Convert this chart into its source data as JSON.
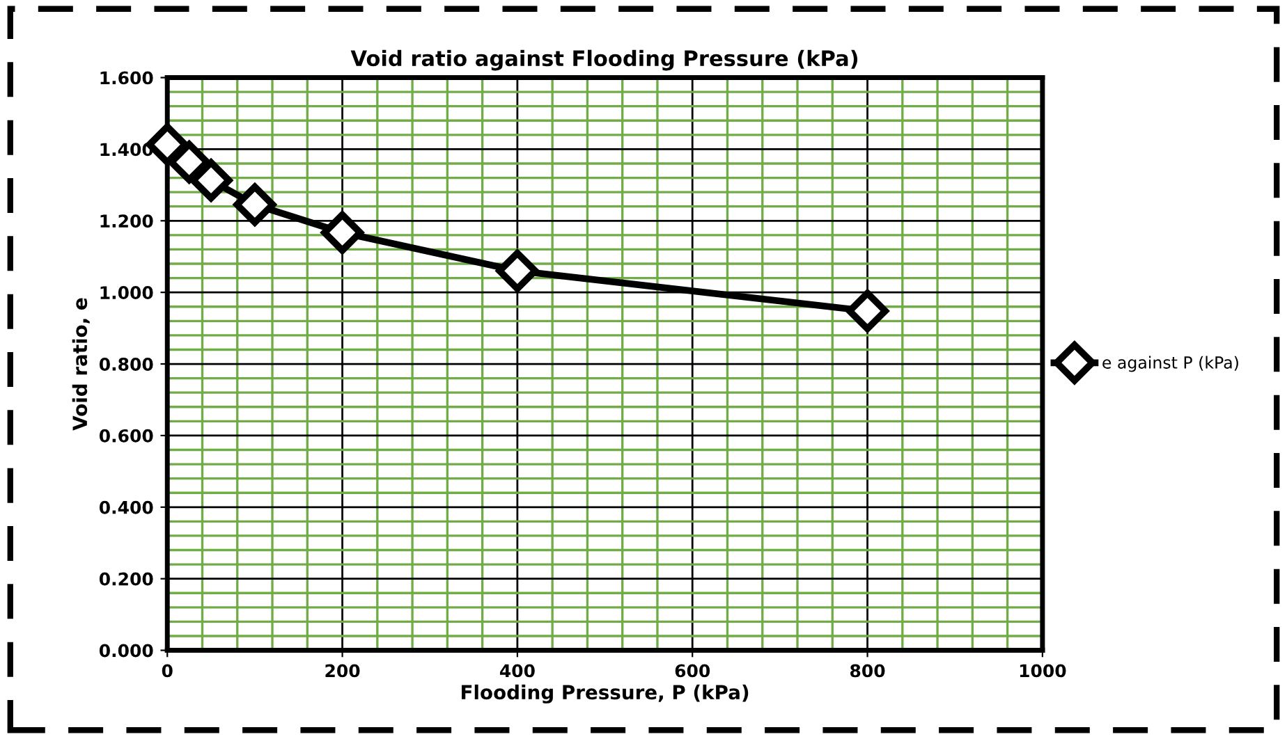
{
  "chart_data": {
    "type": "line",
    "title": "Void ratio against Flooding Pressure (kPa)",
    "xlabel": "Flooding Pressure, P (kPa)",
    "ylabel": "Void ratio, e",
    "x": [
      0,
      25,
      50,
      100,
      200,
      400,
      800
    ],
    "series": [
      {
        "name": "e against P (kPa)",
        "color": "#000000",
        "values": [
          1.413,
          1.364,
          1.313,
          1.245,
          1.167,
          1.06,
          0.948
        ]
      }
    ],
    "xlim": [
      0,
      1000
    ],
    "xticks": [
      0,
      {
        "value": 40,
        "label": null
      },
      {
        "value": 80,
        "label": null
      },
      {
        "value": 120,
        "label": null
      },
      {
        "value": 160,
        "label": null
      },
      200,
      {
        "value": 240,
        "label": null
      },
      {
        "value": 280,
        "label": null
      },
      {
        "value": 320,
        "label": null
      },
      {
        "value": 360,
        "label": null
      },
      400,
      {
        "value": 440,
        "label": null
      },
      {
        "value": 480,
        "label": null
      },
      {
        "value": 520,
        "label": null
      },
      {
        "value": 560,
        "label": null
      },
      600,
      {
        "value": 640,
        "label": null
      },
      {
        "value": 680,
        "label": null
      },
      {
        "value": 720,
        "label": null
      },
      {
        "value": 760,
        "label": null
      },
      800,
      {
        "value": 840,
        "label": null
      },
      {
        "value": 880,
        "label": null
      },
      {
        "value": 920,
        "label": null
      },
      {
        "value": 960,
        "label": null
      },
      1000
    ],
    "ylim": [
      0,
      1.6
    ],
    "yticks": [
      {
        "value": 0,
        "label": "0.000"
      },
      {
        "value": 0.04,
        "label": null
      },
      {
        "value": 0.08,
        "label": null
      },
      {
        "value": 0.12,
        "label": null
      },
      {
        "value": 0.16,
        "label": null
      },
      {
        "value": 0.2,
        "label": "0.200"
      },
      {
        "value": 0.24,
        "label": null
      },
      {
        "value": 0.28,
        "label": null
      },
      {
        "value": 0.32,
        "label": null
      },
      {
        "value": 0.36,
        "label": null
      },
      {
        "value": 0.4,
        "label": "0.400"
      },
      {
        "value": 0.44,
        "label": null
      },
      {
        "value": 0.48,
        "label": null
      },
      {
        "value": 0.52,
        "label": null
      },
      {
        "value": 0.56,
        "label": null
      },
      {
        "value": 0.6,
        "label": "0.600"
      },
      {
        "value": 0.64,
        "label": null
      },
      {
        "value": 0.68,
        "label": null
      },
      {
        "value": 0.72,
        "label": null
      },
      {
        "value": 0.76,
        "label": null
      },
      {
        "value": 0.8,
        "label": "0.800"
      },
      {
        "value": 0.84,
        "label": null
      },
      {
        "value": 0.88,
        "label": null
      },
      {
        "value": 0.92,
        "label": null
      },
      {
        "value": 0.96,
        "label": null
      },
      {
        "value": 1.0,
        "label": "1.000"
      },
      {
        "value": 1.04,
        "label": null
      },
      {
        "value": 1.08,
        "label": null
      },
      {
        "value": 1.12,
        "label": null
      },
      {
        "value": 1.16,
        "label": null
      },
      {
        "value": 1.2,
        "label": "1.200"
      },
      {
        "value": 1.24,
        "label": null
      },
      {
        "value": 1.28,
        "label": null
      },
      {
        "value": 1.32,
        "label": null
      },
      {
        "value": 1.36,
        "label": null
      },
      {
        "value": 1.4,
        "label": "1.400"
      },
      {
        "value": 1.44,
        "label": null
      },
      {
        "value": 1.48,
        "label": null
      },
      {
        "value": 1.52,
        "label": null
      },
      {
        "value": 1.56,
        "label": null
      },
      {
        "value": 1.6,
        "label": "1.600"
      }
    ],
    "grid": true,
    "legend": "right",
    "marker": "diamond",
    "line_style": "solid"
  }
}
